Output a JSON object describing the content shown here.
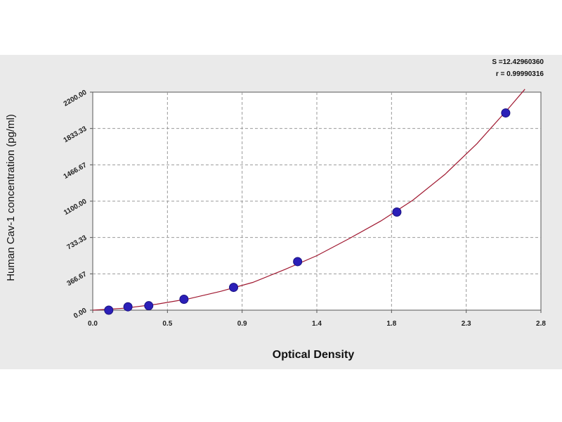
{
  "chart_data": {
    "type": "scatter",
    "title": "",
    "xlabel": "Optical Density",
    "ylabel": "Human Cav-1 concentration (pg/ml)",
    "xlim": [
      0.0,
      2.8
    ],
    "ylim": [
      0.0,
      2200.0
    ],
    "x_ticks": [
      "0.0",
      "0.5",
      "0.9",
      "1.4",
      "1.8",
      "2.3",
      "2.8"
    ],
    "y_ticks": [
      "0.00",
      "366.67",
      "733.33",
      "1100.00",
      "1466.67",
      "1833.33",
      "2200.00"
    ],
    "grid": true,
    "fit_stats": [
      "S =12.42960360",
      "r = 0.99990316"
    ],
    "series": [
      {
        "type": "scatter",
        "x": [
          0.1,
          0.22,
          0.35,
          0.57,
          0.88,
          1.28,
          1.9,
          2.58
        ],
        "y": [
          0,
          34,
          45,
          110,
          230,
          490,
          990,
          1990
        ]
      },
      {
        "type": "line",
        "x": [
          0.0,
          0.2,
          0.4,
          0.6,
          0.8,
          1.0,
          1.2,
          1.4,
          1.6,
          1.8,
          2.0,
          2.2,
          2.4,
          2.6,
          2.7
        ],
        "y": [
          0,
          20,
          60,
          115,
          190,
          280,
          410,
          550,
          720,
          900,
          1110,
          1370,
          1680,
          2040,
          2230
        ]
      }
    ],
    "colors": {
      "point_fill": "#2b1fb8",
      "point_stroke": "#1a1280",
      "curve": "#a01830",
      "grid": "#9a9a9a",
      "frame": "#555555",
      "panel": "#eaeaea"
    }
  }
}
